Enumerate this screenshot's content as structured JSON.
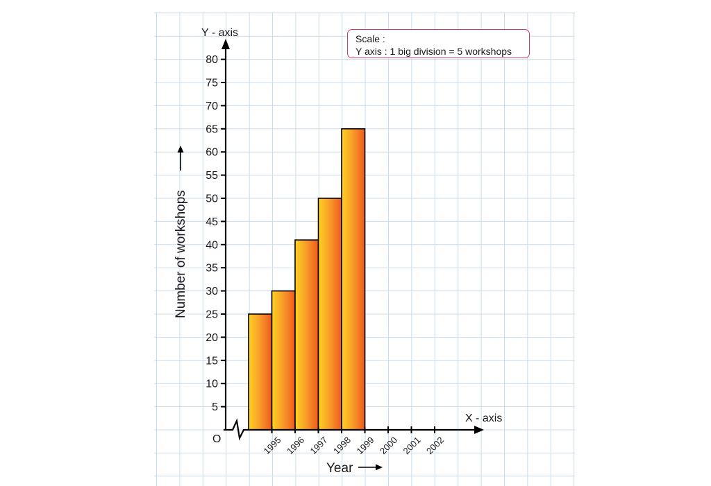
{
  "chart_data": {
    "type": "bar",
    "categories": [
      "1995",
      "1996",
      "1997",
      "1998",
      "1999",
      "2000",
      "2001",
      "2002"
    ],
    "values": [
      25,
      30,
      41,
      50,
      65,
      null,
      null,
      null
    ],
    "title": "",
    "xlabel": "Year",
    "ylabel": "Number of workshops",
    "x_axis_name": "X - axis",
    "y_axis_name": "Y - axis",
    "origin_label": "O",
    "ylim": [
      0,
      80
    ],
    "y_ticks": [
      5,
      10,
      15,
      20,
      25,
      30,
      35,
      40,
      45,
      50,
      55,
      60,
      65,
      70,
      75,
      80
    ],
    "grid": true,
    "axis_break": true,
    "colors": {
      "bar_top": "#ffd21f",
      "bar_bottom": "#ef5a1e",
      "bar_outline": "#000000",
      "grid": "#c9dcec",
      "scale_border": "#d9336b"
    }
  },
  "scale_note": {
    "line1": "Scale :",
    "line2": "Y axis : 1 big division = 5 workshops"
  }
}
